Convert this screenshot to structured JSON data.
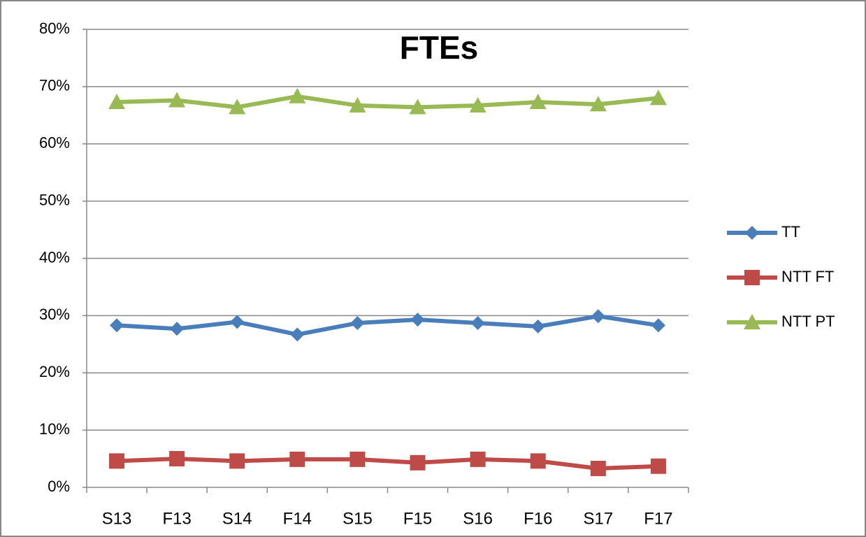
{
  "chart_data": {
    "type": "line",
    "title": "FTEs",
    "categories": [
      "S13",
      "F13",
      "S14",
      "F14",
      "S15",
      "F15",
      "S16",
      "F16",
      "S17",
      "F17"
    ],
    "series": [
      {
        "name": "TT",
        "color": "#4a7ebb",
        "marker": "diamond",
        "values": [
          28.3,
          27.7,
          28.9,
          26.7,
          28.7,
          29.3,
          28.7,
          28.1,
          29.9,
          28.3
        ]
      },
      {
        "name": "NTT FT",
        "color": "#be4b48",
        "marker": "square",
        "values": [
          4.6,
          5.0,
          4.6,
          4.9,
          4.9,
          4.3,
          4.9,
          4.6,
          3.3,
          3.7
        ]
      },
      {
        "name": "NTT PT",
        "color": "#98b954",
        "marker": "triangle",
        "values": [
          67.3,
          67.6,
          66.4,
          68.3,
          66.7,
          66.4,
          66.7,
          67.3,
          66.9,
          68.0
        ]
      }
    ],
    "ylim": [
      0,
      80
    ],
    "yticks": [
      {
        "value": 0,
        "label": "0%"
      },
      {
        "value": 10,
        "label": "10%"
      },
      {
        "value": 20,
        "label": "20%"
      },
      {
        "value": 30,
        "label": "30%"
      },
      {
        "value": 40,
        "label": "40%"
      },
      {
        "value": 50,
        "label": "50%"
      },
      {
        "value": 60,
        "label": "60%"
      },
      {
        "value": 70,
        "label": "70%"
      },
      {
        "value": 80,
        "label": "80%"
      }
    ],
    "grid": true,
    "legend": "right"
  }
}
